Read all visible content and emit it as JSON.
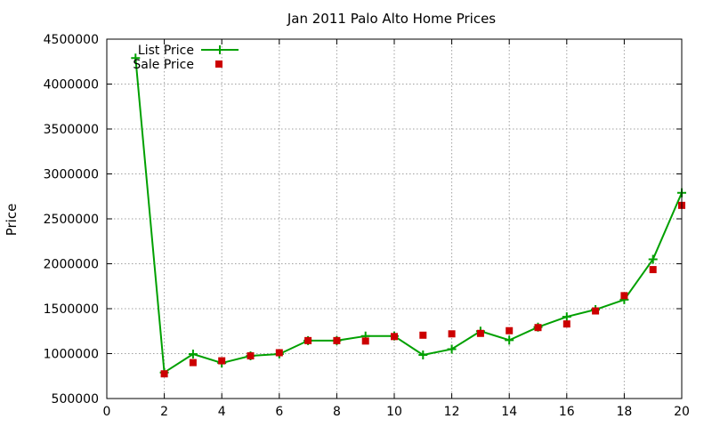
{
  "chart_data": {
    "type": "line",
    "title": "Jan 2011 Palo Alto Home Prices",
    "xlabel": "",
    "ylabel": "Price",
    "xlim": [
      0,
      20
    ],
    "ylim": [
      500000,
      4500000
    ],
    "xticks": [
      0,
      2,
      4,
      6,
      8,
      10,
      12,
      14,
      16,
      18,
      20
    ],
    "yticks": [
      500000,
      1000000,
      1500000,
      2000000,
      2500000,
      3000000,
      3500000,
      4000000,
      4500000
    ],
    "grid": true,
    "legend_position": "top-left",
    "series": [
      {
        "name": "List Price",
        "style": "line-with-plus-markers",
        "color": "#00a000",
        "x": [
          1,
          2,
          3,
          4,
          5,
          6,
          7,
          8,
          9,
          10,
          11,
          12,
          13,
          14,
          15,
          16,
          17,
          18,
          19,
          20
        ],
        "values": [
          4290000,
          790000,
          995000,
          895000,
          975000,
          995000,
          1145000,
          1145000,
          1195000,
          1195000,
          985000,
          1050000,
          1250000,
          1150000,
          1295000,
          1410000,
          1490000,
          1600000,
          2050000,
          2790000
        ]
      },
      {
        "name": "Sale Price",
        "style": "square-points",
        "color": "#cc0000",
        "x": [
          2,
          3,
          4,
          5,
          6,
          7,
          8,
          9,
          10,
          11,
          12,
          13,
          14,
          15,
          16,
          17,
          18,
          19,
          20
        ],
        "values": [
          775000,
          900000,
          920000,
          975000,
          1010000,
          1145000,
          1145000,
          1140000,
          1190000,
          1205000,
          1220000,
          1225000,
          1255000,
          1290000,
          1330000,
          1475000,
          1645000,
          1935000,
          2650000
        ]
      }
    ]
  }
}
